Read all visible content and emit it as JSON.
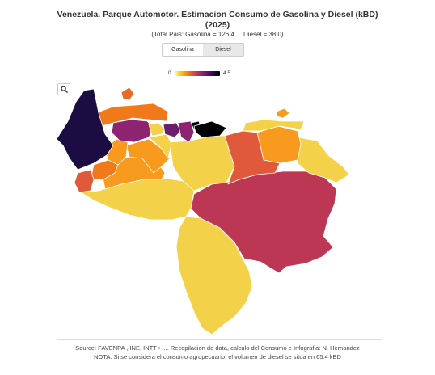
{
  "header": {
    "title_line1": "Venezuela. Parque Automotor. Estimacion Consumo de Gasolina y Diesel (kBD)",
    "title_line2": "(2025)",
    "subtitle": "(Total Pais: Gasolina = 126.4 ... Diesel = 38.0)"
  },
  "tabs": [
    {
      "label": "Gasolina",
      "active": true
    },
    {
      "label": "Diesel",
      "active": false
    }
  ],
  "legend": {
    "min": "0",
    "max": "4.5",
    "colors": [
      "#fcffa4",
      "#f8c932",
      "#f98e09",
      "#e45a31",
      "#bc3754",
      "#87216b",
      "#57106e",
      "#1b0c41",
      "#000004"
    ]
  },
  "toolbar": {
    "zoom_icon": "magnifier-icon"
  },
  "map": {
    "regions": [
      {
        "name": "zulia",
        "color": "#1b0c41"
      },
      {
        "name": "falcon",
        "color": "#f07a1a"
      },
      {
        "name": "falcon-islet",
        "color": "#e86a2a"
      },
      {
        "name": "lara",
        "color": "#8e2470"
      },
      {
        "name": "yaracuy",
        "color": "#f3d24a"
      },
      {
        "name": "carabobo",
        "color": "#6b1d6e"
      },
      {
        "name": "aragua",
        "color": "#8e2470"
      },
      {
        "name": "distrito-capital",
        "color": "#000004"
      },
      {
        "name": "miranda",
        "color": "#000004"
      },
      {
        "name": "cojedes",
        "color": "#f3d24a"
      },
      {
        "name": "guarico",
        "color": "#f3d24a"
      },
      {
        "name": "portuguesa",
        "color": "#f79a1e"
      },
      {
        "name": "trujillo",
        "color": "#f79a1e"
      },
      {
        "name": "merida",
        "color": "#f07a1a"
      },
      {
        "name": "tachira",
        "color": "#e0593a"
      },
      {
        "name": "barinas",
        "color": "#f79a1e"
      },
      {
        "name": "apure",
        "color": "#f3d24a"
      },
      {
        "name": "anzoategui",
        "color": "#e0593a"
      },
      {
        "name": "monagas",
        "color": "#f79a1e"
      },
      {
        "name": "sucre",
        "color": "#f3d24a"
      },
      {
        "name": "nueva-esparta",
        "color": "#f79a1e"
      },
      {
        "name": "delta-amacuro",
        "color": "#f3d24a"
      },
      {
        "name": "bolivar",
        "color": "#bc3754"
      },
      {
        "name": "amazonas",
        "color": "#f3d24a"
      }
    ]
  },
  "footer": {
    "line1": "Source: FAVENPA , INE, INTT • .... Recopilacion de data, calculo del Consumo e Infografia: N. Hernandez",
    "line2": "NOTA: Si se considera el consumo agropecuario, el volumen de diesel se situa en 65.4 kBD"
  }
}
